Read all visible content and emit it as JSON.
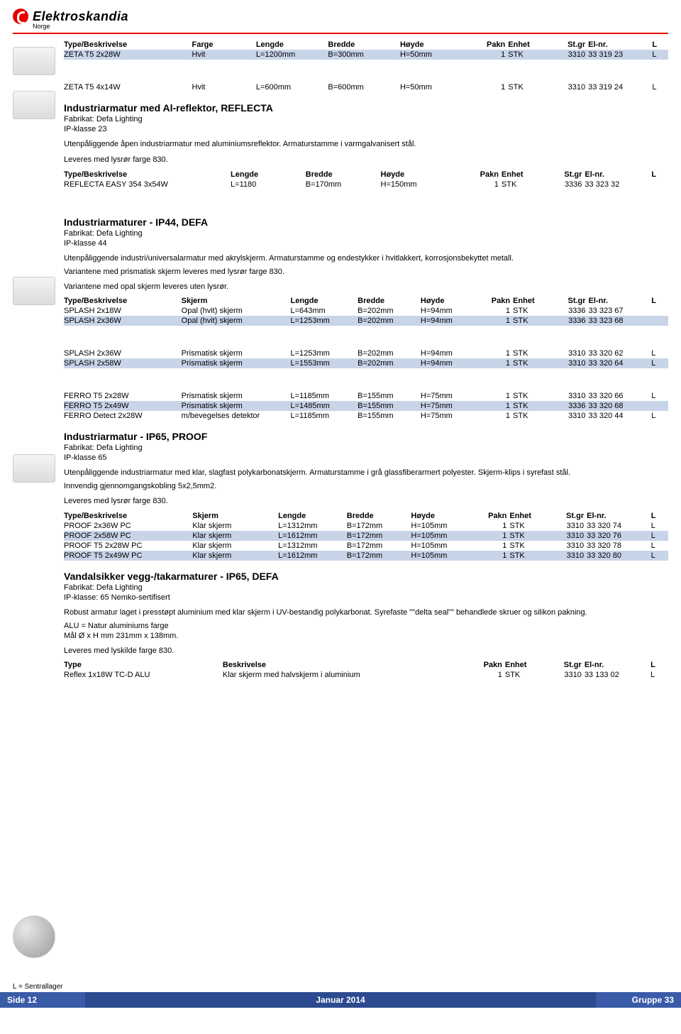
{
  "brand": {
    "name": "Elektroskandia",
    "sub": "Norge"
  },
  "colors": {
    "rule": "#e60000",
    "shade": "#c8d4e8",
    "footer_mid": "#2b4a8f",
    "footer_side": "#3a5ca8"
  },
  "table1": {
    "headers": [
      "Type/Beskrivelse",
      "Farge",
      "Lengde",
      "Bredde",
      "Høyde",
      "Pakn",
      "Enhet",
      "St.gr",
      "El-nr.",
      "L"
    ],
    "rows": [
      {
        "cells": [
          "ZETA T5 2x28W",
          "Hvit",
          "L=1200mm",
          "B=300mm",
          "H=50mm",
          "1",
          "STK",
          "3310",
          "33 319 23",
          "L"
        ],
        "shade": true
      }
    ]
  },
  "table2": {
    "rows": [
      {
        "cells": [
          "ZETA T5 4x14W",
          "Hvit",
          "L=600mm",
          "B=600mm",
          "H=50mm",
          "1",
          "STK",
          "3310",
          "33 319 24",
          "L"
        ],
        "shade": false
      }
    ]
  },
  "sect_reflecta": {
    "title": "Industriarmatur med Al-reflektor, REFLECTA",
    "meta1": "Fabrikat: Defa Lighting",
    "meta2": "IP-klasse 23",
    "desc1": "Utenpåliggende åpen industriarmatur med aluminiumsreflektor. Armaturstamme i varmgalvanisert stål.",
    "desc2": "Leveres med lysrør farge 830.",
    "headers": [
      "Type/Beskrivelse",
      "Lengde",
      "Bredde",
      "Høyde",
      "Pakn",
      "Enhet",
      "St.gr",
      "El-nr.",
      "L"
    ],
    "rows": [
      {
        "cells": [
          "REFLECTA EASY 354 3x54W",
          "L=1180",
          "B=170mm",
          "H=150mm",
          "1",
          "STK",
          "3336",
          "33 323 32",
          ""
        ],
        "shade": false
      }
    ]
  },
  "sect_ip44": {
    "title": "Industriarmaturer - IP44, DEFA",
    "meta1": "Fabrikat: Defa Lighting",
    "meta2": "IP-klasse 44",
    "desc1": "Utenpåliggende industri/universalarmatur med akrylskjerm. Armaturstamme og endestykker i hvitlakkert, korrosjonsbekyttet metall.",
    "desc2": "Variantene med prismatisk skjerm leveres med lysrør farge 830.",
    "desc3": "Variantene med opal skjerm leveres uten lysrør.",
    "headers": [
      "Type/Beskrivelse",
      "Skjerm",
      "Lengde",
      "Bredde",
      "Høyde",
      "Pakn",
      "Enhet",
      "St.gr",
      "El-nr.",
      "L"
    ],
    "group1": [
      {
        "cells": [
          "SPLASH 2x18W",
          "Opal (hvit) skjerm",
          "L=643mm",
          "B=202mm",
          "H=94mm",
          "1",
          "STK",
          "3336",
          "33 323 67",
          ""
        ],
        "shade": false
      },
      {
        "cells": [
          "SPLASH 2x36W",
          "Opal (hvit) skjerm",
          "L=1253mm",
          "B=202mm",
          "H=94mm",
          "1",
          "STK",
          "3336",
          "33 323 68",
          ""
        ],
        "shade": true
      }
    ],
    "group2": [
      {
        "cells": [
          "SPLASH 2x36W",
          "Prismatisk skjerm",
          "L=1253mm",
          "B=202mm",
          "H=94mm",
          "1",
          "STK",
          "3310",
          "33 320 62",
          "L"
        ],
        "shade": false
      },
      {
        "cells": [
          "SPLASH 2x58W",
          "Prismatisk skjerm",
          "L=1553mm",
          "B=202mm",
          "H=94mm",
          "1",
          "STK",
          "3310",
          "33 320 64",
          "L"
        ],
        "shade": true
      }
    ],
    "group3": [
      {
        "cells": [
          "FERRO T5 2x28W",
          "Prismatisk skjerm",
          "L=1185mm",
          "B=155mm",
          "H=75mm",
          "1",
          "STK",
          "3310",
          "33 320 66",
          "L"
        ],
        "shade": false
      },
      {
        "cells": [
          "FERRO T5 2x49W",
          "Prismatisk skjerm",
          "L=1485mm",
          "B=155mm",
          "H=75mm",
          "1",
          "STK",
          "3336",
          "33 320 68",
          ""
        ],
        "shade": true
      },
      {
        "cells": [
          "FERRO Detect 2x28W",
          "m/bevegelses detektor",
          "L=1185mm",
          "B=155mm",
          "H=75mm",
          "1",
          "STK",
          "3310",
          "33 320 44",
          "L"
        ],
        "shade": false
      }
    ]
  },
  "sect_ip65": {
    "title": "Industriarmatur - IP65, PROOF",
    "meta1": "Fabrikat: Defa Lighting",
    "meta2": "IP-klasse 65",
    "desc1": "Utenpåliggende industriarmatur med klar, slagfast polykarbonatskjerm. Armaturstamme i grå glassfiberarmert polyester. Skjerm-klips i syrefast stål.",
    "desc2": "Innvendig gjennomgangskobling 5x2,5mm2.",
    "desc3": "Leveres med lysrør farge 830.",
    "headers": [
      "Type/Beskrivelse",
      "Skjerm",
      "Lengde",
      "Bredde",
      "Høyde",
      "Pakn",
      "Enhet",
      "St.gr",
      "El-nr.",
      "L"
    ],
    "rows": [
      {
        "cells": [
          "PROOF 2x36W PC",
          "Klar skjerm",
          "L=1312mm",
          "B=172mm",
          "H=105mm",
          "1",
          "STK",
          "3310",
          "33 320 74",
          "L"
        ],
        "shade": false
      },
      {
        "cells": [
          "PROOF 2x58W PC",
          "Klar skjerm",
          "L=1612mm",
          "B=172mm",
          "H=105mm",
          "1",
          "STK",
          "3310",
          "33 320 76",
          "L"
        ],
        "shade": true
      },
      {
        "cells": [
          "PROOF T5 2x28W PC",
          "Klar skjerm",
          "L=1312mm",
          "B=172mm",
          "H=105mm",
          "1",
          "STK",
          "3310",
          "33 320 78",
          "L"
        ],
        "shade": false
      },
      {
        "cells": [
          "PROOF T5 2x49W PC",
          "Klar skjerm",
          "L=1612mm",
          "B=172mm",
          "H=105mm",
          "1",
          "STK",
          "3310",
          "33 320 80",
          "L"
        ],
        "shade": true
      }
    ]
  },
  "sect_vandal": {
    "title": "Vandalsikker vegg-/takarmaturer -  IP65,  DEFA",
    "meta1": "Fabrikat: Defa Lighting",
    "meta2": "IP-klasse: 65      Nemko-sertifisert",
    "desc1": "Robust armatur laget i presstøpt aluminium med klar skjerm i UV-bestandig polykarbonat. Syrefaste \"\"delta seal\"\" behandlede skruer og silikon pakning.",
    "desc2": "ALU = Natur aluminiums farge",
    "desc3": "Mål Ø x H mm  231mm x 138mm.",
    "desc4": "Leveres med lyskilde farge 830.",
    "headers": [
      "Type",
      "Beskrivelse",
      "Pakn",
      "Enhet",
      "St.gr",
      "El-nr.",
      "L"
    ],
    "rows": [
      {
        "cells": [
          "Reflex 1x18W TC-D ALU",
          "Klar skjerm med halvskjerm i aluminium",
          "1",
          "STK",
          "3310",
          "33 133 02",
          "L"
        ],
        "shade": false
      }
    ]
  },
  "footer": {
    "note": "L = Sentrallager",
    "left": "Side 12",
    "mid": "Januar 2014",
    "right": "Gruppe 33"
  }
}
